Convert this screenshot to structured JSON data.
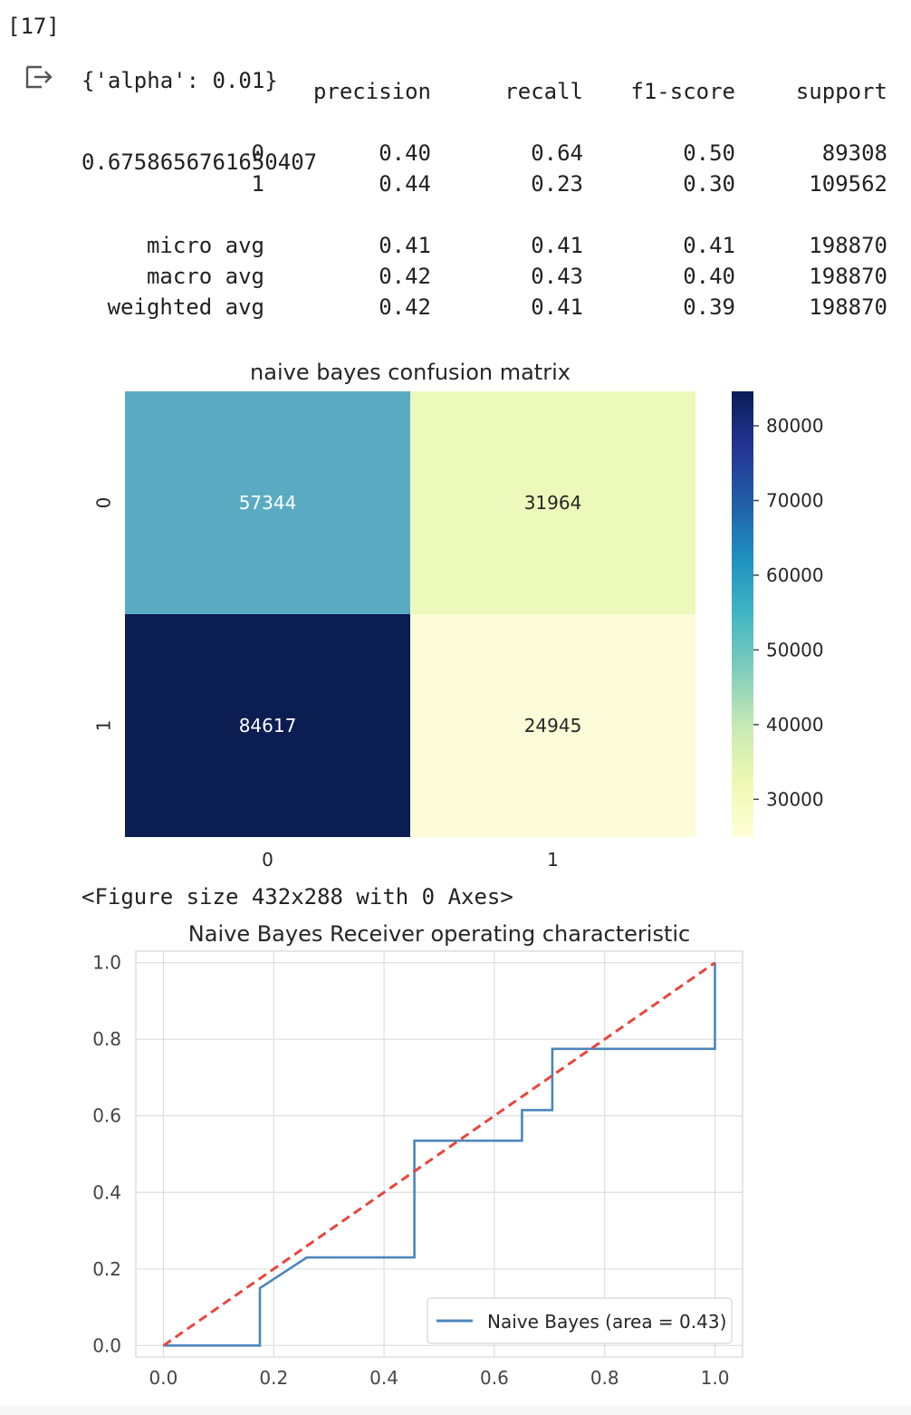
{
  "cell": {
    "exec_count": "[17]",
    "params_line": "{'alpha': 0.01}",
    "score_line": "0.6758656761650407",
    "output_icon": "output-redirect-icon"
  },
  "report": {
    "headers": [
      "precision",
      "recall",
      "f1-score",
      "support"
    ],
    "rows": [
      {
        "label": "0",
        "precision": "0.40",
        "recall": "0.64",
        "f1": "0.50",
        "support": "89308"
      },
      {
        "label": "1",
        "precision": "0.44",
        "recall": "0.23",
        "f1": "0.30",
        "support": "109562"
      },
      {
        "label": "micro avg",
        "precision": "0.41",
        "recall": "0.41",
        "f1": "0.41",
        "support": "198870"
      },
      {
        "label": "macro avg",
        "precision": "0.42",
        "recall": "0.43",
        "f1": "0.40",
        "support": "198870"
      },
      {
        "label": "weighted avg",
        "precision": "0.42",
        "recall": "0.41",
        "f1": "0.39",
        "support": "198870"
      }
    ]
  },
  "figure_note": "<Figure size 432x288 with 0 Axes>",
  "chart_data": [
    {
      "type": "heatmap",
      "title": "naive bayes confusion matrix",
      "x_categories": [
        "0",
        "1"
      ],
      "y_categories": [
        "0",
        "1"
      ],
      "values": [
        [
          57344,
          31964
        ],
        [
          84617,
          24945
        ]
      ],
      "colormap": "YlGnBu",
      "colorbar_ticks": [
        30000,
        40000,
        50000,
        60000,
        70000,
        80000
      ],
      "colorbar_range": [
        24945,
        84617
      ],
      "cell_colors": [
        [
          "#5aabc2",
          "#edf8bb"
        ],
        [
          "#0c1d52",
          "#fcfdd8"
        ]
      ]
    },
    {
      "type": "line",
      "title": "Naive Bayes Receiver operating characteristic",
      "xlim": [
        -0.05,
        1.05
      ],
      "ylim": [
        -0.03,
        1.03
      ],
      "x_ticks": [
        "0.0",
        "0.2",
        "0.4",
        "0.6",
        "0.8",
        "1.0"
      ],
      "y_ticks": [
        "0.0",
        "0.2",
        "0.4",
        "0.6",
        "0.8",
        "1.0"
      ],
      "grid": true,
      "legend": "lower-right",
      "series": [
        {
          "name": "Naive Bayes (area = 0.43)",
          "color": "#4c86be",
          "x": [
            0.0,
            0.175,
            0.175,
            0.26,
            0.455,
            0.455,
            0.65,
            0.65,
            0.705,
            0.705,
            1.0,
            1.0
          ],
          "y": [
            0.0,
            0.0,
            0.15,
            0.23,
            0.23,
            0.535,
            0.535,
            0.615,
            0.615,
            0.775,
            0.775,
            1.0
          ]
        },
        {
          "color": "#e8453c",
          "dashed": true,
          "x": [
            0.0,
            1.0
          ],
          "y": [
            0.0,
            1.0
          ]
        }
      ]
    }
  ]
}
